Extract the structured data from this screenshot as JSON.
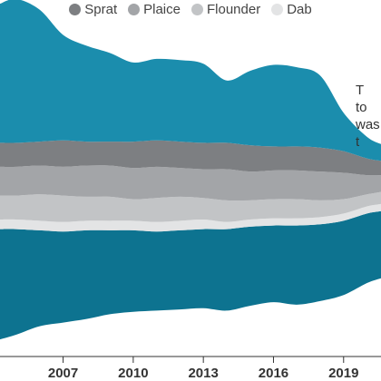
{
  "legend": {
    "items": [
      {
        "label": "Sprat",
        "color": "#7d7f82"
      },
      {
        "label": "Plaice",
        "color": "#a3a5a8"
      },
      {
        "label": "Flounder",
        "color": "#c2c4c6"
      },
      {
        "label": "Dab",
        "color": "#e3e4e5"
      }
    ]
  },
  "annotation": {
    "lines": [
      "T",
      "to",
      "was",
      "t"
    ]
  },
  "chart_data": {
    "type": "area",
    "title": "",
    "xlabel": "",
    "ylabel": "",
    "x_ticks": [
      "2007",
      "2010",
      "2013",
      "2016",
      "2019"
    ],
    "x": [
      2004.3,
      2005,
      2006,
      2007,
      2008,
      2009,
      2010,
      2011,
      2012,
      2013,
      2014,
      2015,
      2016,
      2017,
      2018,
      2019,
      2020,
      2020.6
    ],
    "series": [
      {
        "name": "",
        "color": "#0d7390",
        "values": [
          46,
          44,
          40,
          38,
          37,
          35,
          34,
          33,
          33,
          33,
          34,
          33,
          32,
          33,
          32,
          31,
          29,
          28
        ]
      },
      {
        "name": "Dab",
        "color": "#e3e4e5",
        "values": [
          4,
          4,
          4,
          4,
          4,
          4,
          4,
          4,
          4,
          4,
          3,
          3,
          3,
          3,
          3,
          3,
          3,
          3
        ]
      },
      {
        "name": "Flounder",
        "color": "#c2c4c6",
        "values": [
          10,
          10,
          11,
          11,
          10,
          10,
          9,
          10,
          10,
          9,
          9,
          8,
          8,
          8,
          7,
          6,
          5,
          5
        ]
      },
      {
        "name": "Plaice",
        "color": "#a3a5a8",
        "values": [
          12,
          12,
          12,
          12,
          13,
          13,
          13,
          13,
          12,
          12,
          13,
          12,
          12,
          12,
          12,
          11,
          8,
          7
        ]
      },
      {
        "name": "Sprat",
        "color": "#7d7f82",
        "values": [
          10,
          10,
          10,
          11,
          10,
          10,
          11,
          11,
          11,
          11,
          11,
          11,
          10,
          10,
          10,
          9,
          7,
          6
        ]
      },
      {
        "name": "",
        "color": "#1b8dad",
        "values": [
          58,
          60,
          55,
          44,
          40,
          37,
          33,
          34,
          34,
          33,
          26,
          31,
          34,
          33,
          30,
          16,
          9,
          7
        ]
      }
    ],
    "ylim": [
      -70,
      70
    ],
    "grid": false,
    "legend_position": "top"
  }
}
